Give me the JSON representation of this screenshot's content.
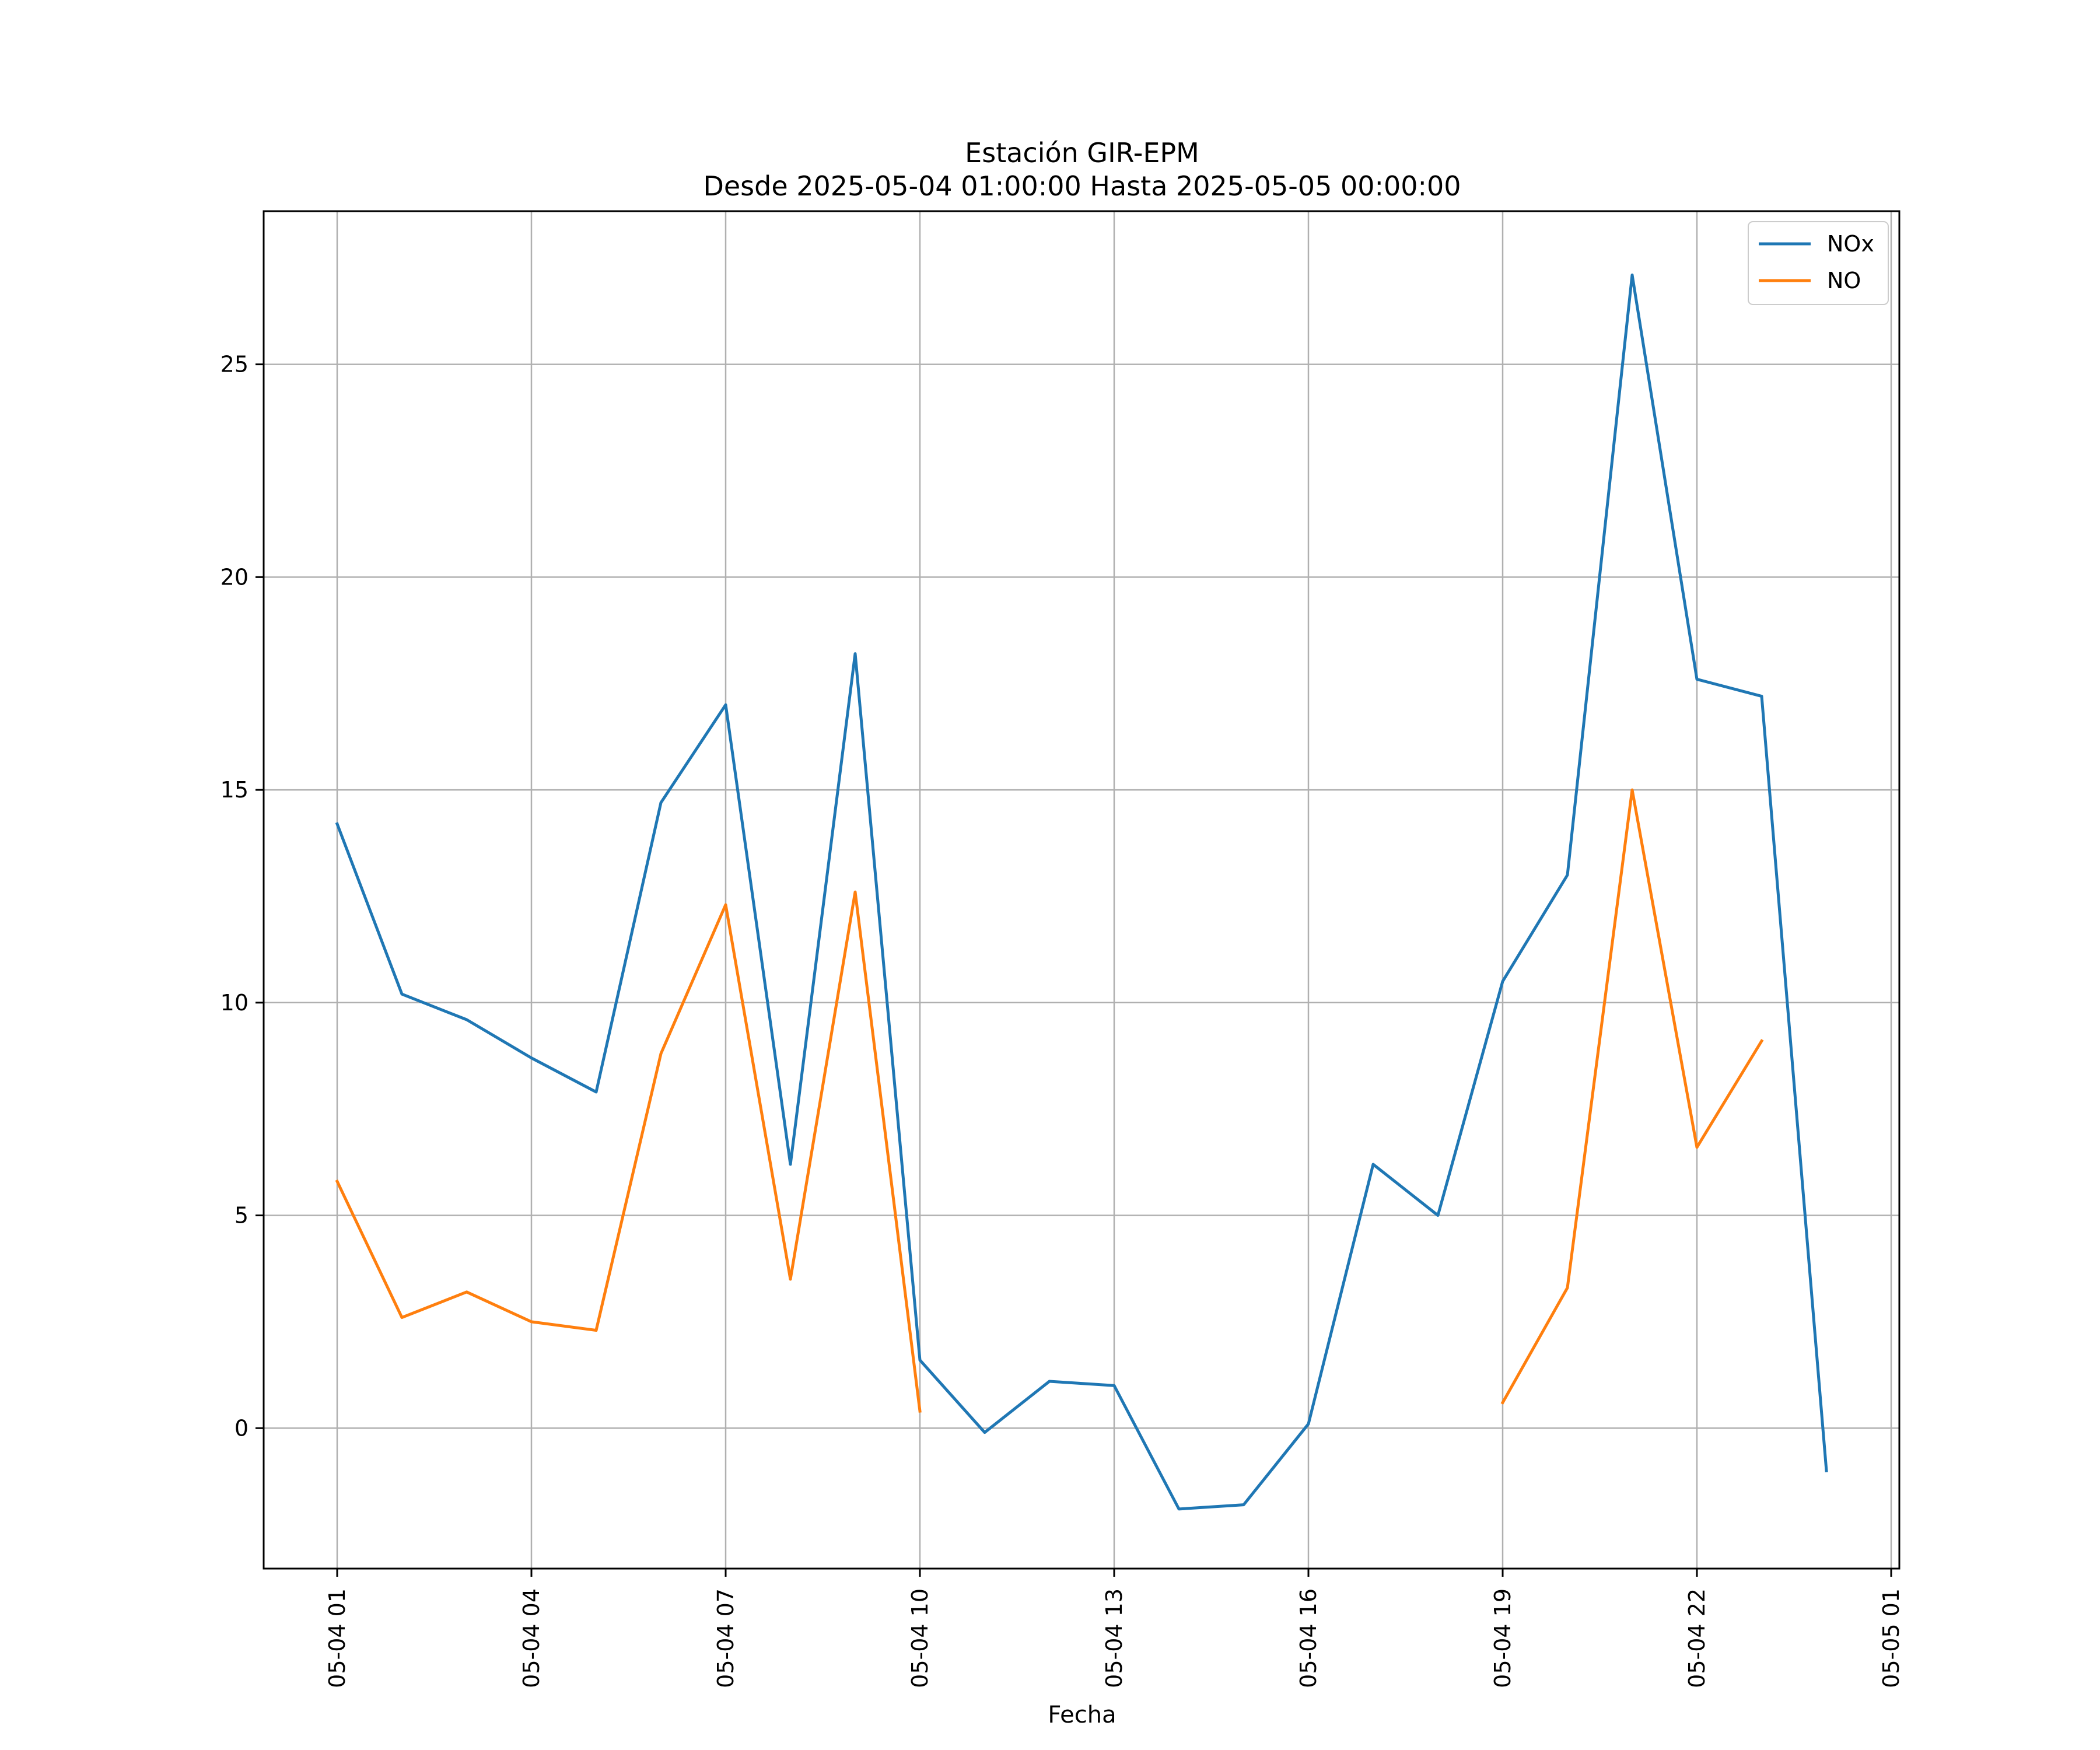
{
  "chart_data": {
    "type": "line",
    "title_lines": [
      "Estación GIR-EPM",
      "Desde 2025-05-04 01:00:00 Hasta 2025-05-05 00:00:00"
    ],
    "xlabel": "Fecha",
    "ylabel": "",
    "x": [
      "05-04 01",
      "05-04 02",
      "05-04 03",
      "05-04 04",
      "05-04 05",
      "05-04 06",
      "05-04 07",
      "05-04 08",
      "05-04 09",
      "05-04 10",
      "05-04 11",
      "05-04 12",
      "05-04 13",
      "05-04 14",
      "05-04 15",
      "05-04 16",
      "05-04 17",
      "05-04 18",
      "05-04 19",
      "05-04 20",
      "05-04 21",
      "05-04 22",
      "05-04 23",
      "05-05 00"
    ],
    "x_ticks": [
      "05-04 01",
      "05-04 04",
      "05-04 07",
      "05-04 10",
      "05-04 13",
      "05-04 16",
      "05-04 19",
      "05-04 22",
      "05-05 01"
    ],
    "ylim": [
      -3.3,
      28.6
    ],
    "y_ticks": [
      0,
      5,
      10,
      15,
      20,
      25
    ],
    "grid": true,
    "legend_position": "top-right",
    "series": [
      {
        "name": "NOx",
        "color": "#1f77b4",
        "values": [
          14.2,
          10.2,
          9.6,
          8.7,
          7.9,
          14.7,
          17.0,
          6.2,
          18.2,
          1.6,
          -0.1,
          1.1,
          1.0,
          -1.9,
          -1.8,
          0.1,
          6.2,
          5.0,
          10.5,
          13.0,
          27.1,
          17.6,
          17.2,
          -1.0
        ]
      },
      {
        "name": "NO",
        "color": "#ff7f0e",
        "values": [
          5.8,
          2.6,
          3.2,
          2.5,
          2.3,
          8.8,
          12.3,
          3.5,
          12.6,
          0.4,
          null,
          null,
          null,
          null,
          null,
          null,
          null,
          null,
          0.6,
          3.3,
          15.0,
          6.6,
          9.1,
          null
        ]
      }
    ]
  }
}
